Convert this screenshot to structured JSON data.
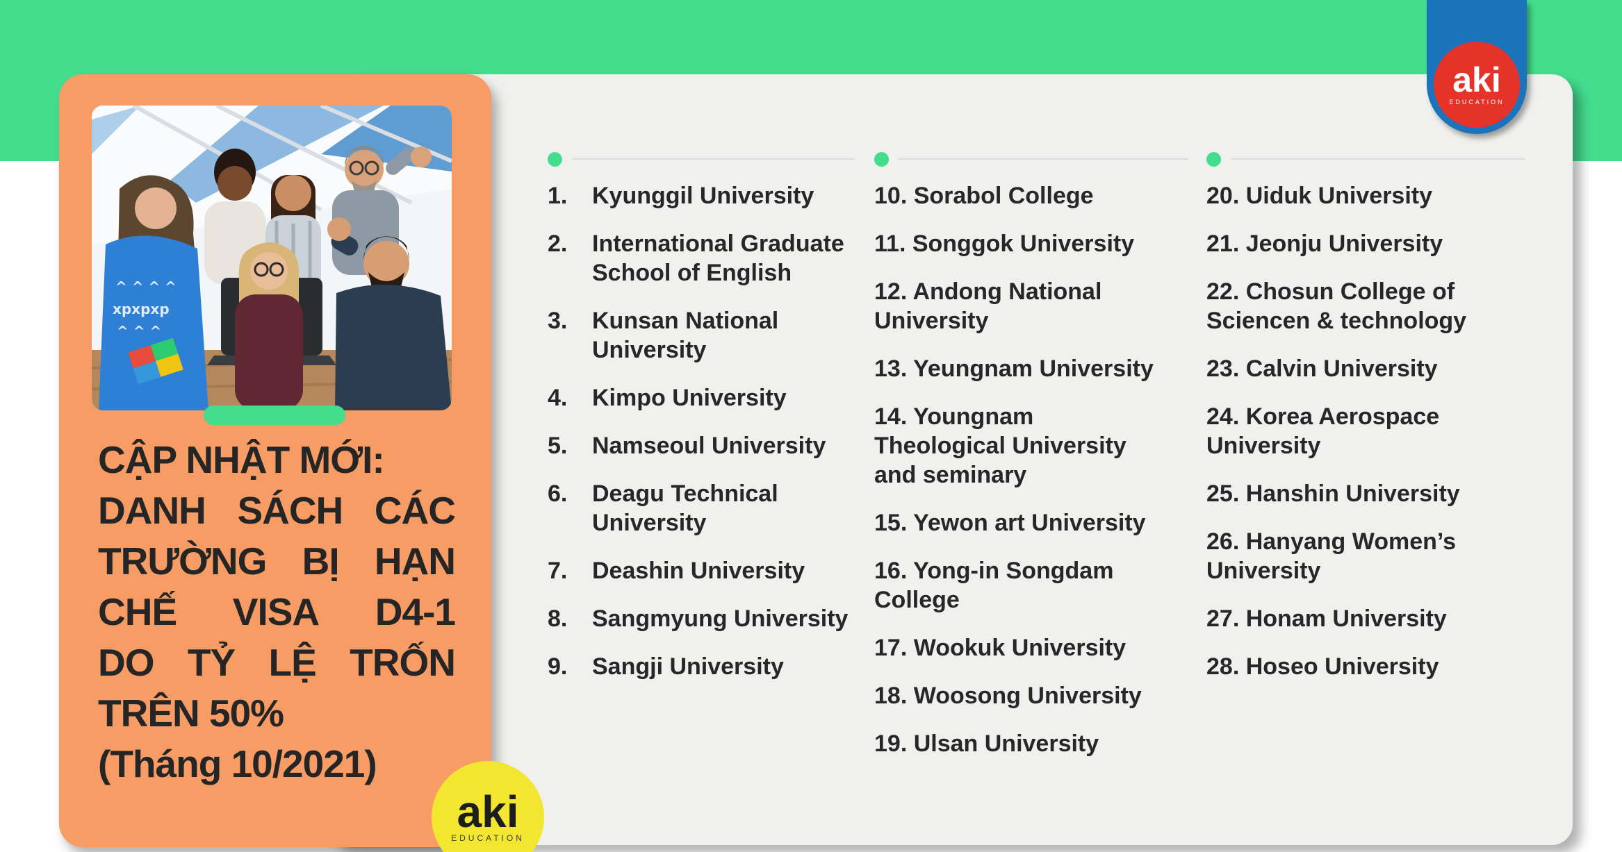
{
  "colors": {
    "green": "#44DD8E",
    "orange": "#F69C64",
    "panel_gray": "#F0F0EE",
    "logo_red": "#E63329",
    "logo_blue": "#1B74BB",
    "logo_yellow": "#F2E631",
    "text_dark": "#272727",
    "divider_gray": "#DCDCDC"
  },
  "logo_top": {
    "brand": "aki",
    "sub": "EDUCATION"
  },
  "logo_bottom": {
    "brand": "aki",
    "sub": "EDUCATION"
  },
  "card": {
    "title_line_first": "CẬP NHẬT MỚI:",
    "title_justified_lines": [
      [
        "DANH",
        "SÁCH",
        "CÁC"
      ],
      [
        "TRƯỜNG",
        "BỊ",
        "HẠN"
      ],
      [
        "CHẾ",
        "VISA",
        "D4-1"
      ],
      [
        "DO",
        "TỶ",
        "LỆ",
        "TRỐN"
      ]
    ],
    "title_line_percent": "TRÊN 50%",
    "title_line_date": "(Tháng 10/2021)"
  },
  "list": {
    "columns": [
      {
        "style": "tabbed",
        "items": [
          {
            "num": "1.",
            "name": "Kyunggil University"
          },
          {
            "num": "2.",
            "name": "International Graduate School of English"
          },
          {
            "num": "3.",
            "name": "Kunsan National University"
          },
          {
            "num": "4.",
            "name": "Kimpo University"
          },
          {
            "num": "5.",
            "name": "Namseoul University"
          },
          {
            "num": "6.",
            "name": "Deagu Technical University"
          },
          {
            "num": "7.",
            "name": "Deashin University"
          },
          {
            "num": "8.",
            "name": "Sangmyung University"
          },
          {
            "num": "9.",
            "name": "Sangji University"
          }
        ]
      },
      {
        "style": "run-in",
        "items": [
          {
            "num": "10.",
            "name": "Sorabol College"
          },
          {
            "num": "11.",
            "name": "Songgok University"
          },
          {
            "num": "12.",
            "name": "Andong National University"
          },
          {
            "num": "13.",
            "name": "Yeungnam University"
          },
          {
            "num": "14.",
            "name": "Youngnam Theological University and seminary"
          },
          {
            "num": "15.",
            "name": "Yewon art University"
          },
          {
            "num": "16.",
            "name": "Yong-in Songdam College"
          },
          {
            "num": "17.",
            "name": "Wookuk University"
          },
          {
            "num": "18.",
            "name": "Woosong University"
          },
          {
            "num": "19.",
            "name": "Ulsan University"
          }
        ]
      },
      {
        "style": "run-in",
        "items": [
          {
            "num": "20.",
            "name": "Uiduk University"
          },
          {
            "num": "21.",
            "name": "Jeonju University"
          },
          {
            "num": "22.",
            "name": "Chosun College of Sciencen & technology"
          },
          {
            "num": "23.",
            "name": "Calvin University"
          },
          {
            "num": "24.",
            "name": "Korea Aerospace University"
          },
          {
            "num": "25.",
            "name": "Hanshin University"
          },
          {
            "num": "26.",
            "name": "Hanyang Women’s University"
          },
          {
            "num": "27.",
            "name": "Honam University"
          },
          {
            "num": "28.",
            "name": "Hoseo University"
          }
        ]
      }
    ]
  }
}
